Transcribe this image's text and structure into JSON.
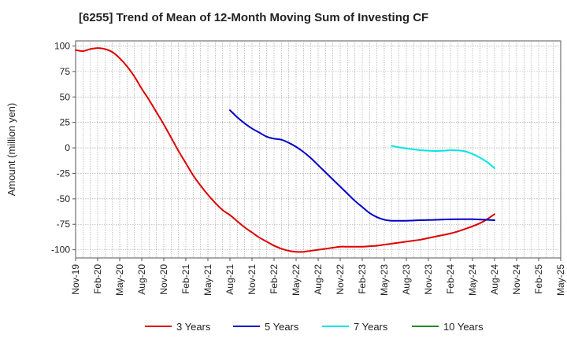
{
  "chart_data": {
    "type": "line",
    "title": "[6255]  Trend of Mean of 12-Month Moving Sum of Investing CF",
    "xlabel": "",
    "ylabel": "Amount (million yen)",
    "ylim": [
      -108,
      105
    ],
    "yticks": [
      100,
      75,
      50,
      25,
      0,
      -25,
      -50,
      -75,
      -100
    ],
    "x_tick_labels": [
      "Nov-19",
      "Feb-20",
      "May-20",
      "Aug-20",
      "Nov-20",
      "Feb-21",
      "May-21",
      "Aug-21",
      "Nov-21",
      "Feb-22",
      "May-22",
      "Aug-22",
      "Nov-22",
      "Feb-23",
      "May-23",
      "Aug-23",
      "Nov-23",
      "Feb-24",
      "May-24",
      "Aug-24",
      "Nov-24",
      "Feb-25",
      "May-25"
    ],
    "grid": true,
    "legend_position": "bottom",
    "series": [
      {
        "name": "3 Years",
        "color": "#e00000",
        "points": [
          [
            "Nov-19",
            96
          ],
          [
            "Dec-19",
            95
          ],
          [
            "Jan-20",
            97
          ],
          [
            "Feb-20",
            98
          ],
          [
            "Mar-20",
            97
          ],
          [
            "Apr-20",
            94
          ],
          [
            "May-20",
            88
          ],
          [
            "Jun-20",
            80
          ],
          [
            "Jul-20",
            70
          ],
          [
            "Aug-20",
            58
          ],
          [
            "Sep-20",
            47
          ],
          [
            "Oct-20",
            35
          ],
          [
            "Nov-20",
            23
          ],
          [
            "Dec-20",
            10
          ],
          [
            "Jan-21",
            -3
          ],
          [
            "Feb-21",
            -15
          ],
          [
            "Mar-21",
            -27
          ],
          [
            "Apr-21",
            -37
          ],
          [
            "May-21",
            -46
          ],
          [
            "Jun-21",
            -54
          ],
          [
            "Jul-21",
            -61
          ],
          [
            "Aug-21",
            -66
          ],
          [
            "Sep-21",
            -72
          ],
          [
            "Oct-21",
            -78
          ],
          [
            "Nov-21",
            -83
          ],
          [
            "Dec-21",
            -88
          ],
          [
            "Jan-22",
            -92
          ],
          [
            "Feb-22",
            -96
          ],
          [
            "Mar-22",
            -99
          ],
          [
            "Apr-22",
            -101
          ],
          [
            "May-22",
            -102
          ],
          [
            "Jun-22",
            -102
          ],
          [
            "Jul-22",
            -101
          ],
          [
            "Aug-22",
            -100
          ],
          [
            "Sep-22",
            -99
          ],
          [
            "Oct-22",
            -98
          ],
          [
            "Nov-22",
            -97
          ],
          [
            "Dec-22",
            -97
          ],
          [
            "Jan-23",
            -97
          ],
          [
            "Feb-23",
            -97
          ],
          [
            "Mar-23",
            -96.5
          ],
          [
            "Apr-23",
            -96
          ],
          [
            "May-23",
            -95
          ],
          [
            "Jun-23",
            -94
          ],
          [
            "Jul-23",
            -93
          ],
          [
            "Aug-23",
            -92
          ],
          [
            "Sep-23",
            -91
          ],
          [
            "Oct-23",
            -90
          ],
          [
            "Nov-23",
            -88.5
          ],
          [
            "Dec-23",
            -87
          ],
          [
            "Jan-24",
            -85.5
          ],
          [
            "Feb-24",
            -84
          ],
          [
            "Mar-24",
            -82
          ],
          [
            "Apr-24",
            -79.5
          ],
          [
            "May-24",
            -77
          ],
          [
            "Jun-24",
            -74
          ],
          [
            "Jul-24",
            -70
          ],
          [
            "Aug-24",
            -65
          ]
        ]
      },
      {
        "name": "5 Years",
        "color": "#0000cc",
        "points": [
          [
            "Aug-21",
            37
          ],
          [
            "Sep-21",
            30
          ],
          [
            "Oct-21",
            24
          ],
          [
            "Nov-21",
            19
          ],
          [
            "Dec-21",
            15
          ],
          [
            "Jan-22",
            11
          ],
          [
            "Feb-22",
            9
          ],
          [
            "Mar-22",
            8
          ],
          [
            "Apr-22",
            5
          ],
          [
            "May-22",
            1
          ],
          [
            "Jun-22",
            -4
          ],
          [
            "Jul-22",
            -10
          ],
          [
            "Aug-22",
            -17
          ],
          [
            "Sep-22",
            -24
          ],
          [
            "Oct-22",
            -31
          ],
          [
            "Nov-22",
            -38
          ],
          [
            "Dec-22",
            -45
          ],
          [
            "Jan-23",
            -52
          ],
          [
            "Feb-23",
            -58
          ],
          [
            "Mar-23",
            -64
          ],
          [
            "Apr-23",
            -68
          ],
          [
            "May-23",
            -70.5
          ],
          [
            "Jun-23",
            -71.5
          ],
          [
            "Jul-23",
            -71.5
          ],
          [
            "Aug-23",
            -71.5
          ],
          [
            "Sep-23",
            -71.2
          ],
          [
            "Oct-23",
            -71
          ],
          [
            "Nov-23",
            -70.8
          ],
          [
            "Dec-23",
            -70.6
          ],
          [
            "Jan-24",
            -70.3
          ],
          [
            "Feb-24",
            -70.1
          ],
          [
            "Mar-24",
            -70
          ],
          [
            "Apr-24",
            -70
          ],
          [
            "May-24",
            -70
          ],
          [
            "Jun-24",
            -70.3
          ],
          [
            "Jul-24",
            -70.6
          ],
          [
            "Aug-24",
            -71
          ]
        ]
      },
      {
        "name": "7 Years",
        "color": "#00e5e5",
        "points": [
          [
            "Jun-23",
            2
          ],
          [
            "Jul-23",
            0.5
          ],
          [
            "Aug-23",
            -0.5
          ],
          [
            "Sep-23",
            -1.5
          ],
          [
            "Oct-23",
            -2.3
          ],
          [
            "Nov-23",
            -2.8
          ],
          [
            "Dec-23",
            -3
          ],
          [
            "Jan-24",
            -2.8
          ],
          [
            "Feb-24",
            -2.3
          ],
          [
            "Mar-24",
            -2.5
          ],
          [
            "Apr-24",
            -3.5
          ],
          [
            "May-24",
            -6
          ],
          [
            "Jun-24",
            -9.5
          ],
          [
            "Jul-24",
            -14
          ],
          [
            "Aug-24",
            -20
          ]
        ]
      },
      {
        "name": "10 Years",
        "color": "#228b22",
        "points": []
      }
    ]
  }
}
